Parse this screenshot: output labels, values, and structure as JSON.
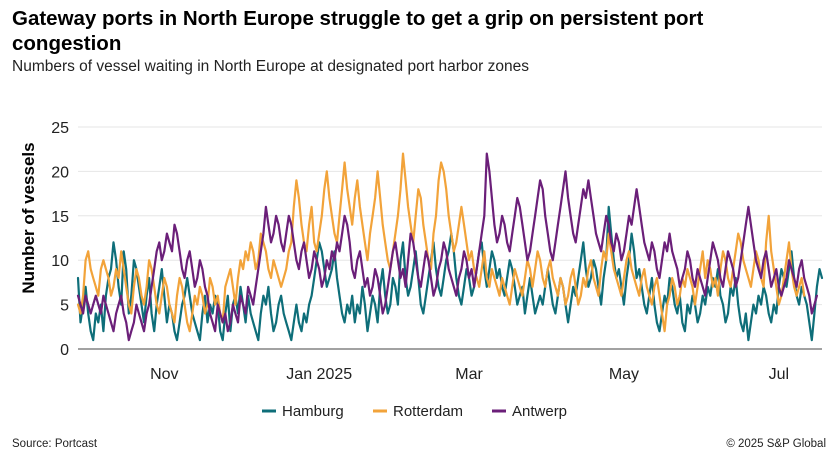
{
  "header": {
    "title": "Gateway ports in North Europe struggle to get a grip on persistent port congestion",
    "subtitle": "Numbers of vessel waiting in North Europe at designated port harbor zones"
  },
  "footer": {
    "source": "Source: Portcast",
    "copyright": "© 2025 S&P Global"
  },
  "chart_data": {
    "type": "line",
    "title": "Gateway ports in North Europe struggle to get a grip on persistent port congestion",
    "subtitle": "Numbers of vessel waiting in North Europe at designated port harbor zones",
    "xlabel": "",
    "ylabel": "Number of vessels",
    "ylim": [
      0,
      25
    ],
    "yticks": [
      0,
      5,
      10,
      15,
      20,
      25
    ],
    "x_start": "2024-10-12",
    "x_end": "2025-07-25",
    "xticks": [
      {
        "label": "Nov",
        "day": 34
      },
      {
        "label": "Jan 2025",
        "day": 95
      },
      {
        "label": "Mar",
        "day": 154
      },
      {
        "label": "May",
        "day": 215
      },
      {
        "label": "Jul",
        "day": 276
      }
    ],
    "legend_position": "bottom",
    "series": [
      {
        "name": "Hamburg",
        "color": "#0e6e79",
        "values": [
          8,
          3,
          5,
          7,
          4,
          2,
          1,
          4,
          3,
          5,
          2,
          6,
          8,
          9,
          12,
          10,
          7,
          5,
          11,
          9,
          4,
          6,
          10,
          9,
          7,
          5,
          3,
          6,
          8,
          4,
          2,
          5,
          7,
          9,
          6,
          3,
          5,
          4,
          2,
          1,
          3,
          5,
          6,
          8,
          6,
          4,
          3,
          2,
          1,
          4,
          6,
          3,
          5,
          4,
          6,
          5,
          2,
          1,
          4,
          6,
          2,
          5,
          6,
          4,
          7,
          5,
          3,
          6,
          4,
          3,
          2,
          1,
          4,
          6,
          5,
          7,
          4,
          2,
          3,
          5,
          6,
          4,
          3,
          2,
          1,
          3,
          5,
          3,
          2,
          4,
          3,
          5,
          6,
          8,
          10,
          12,
          11,
          9,
          7,
          8,
          9,
          11,
          8,
          6,
          4,
          3,
          5,
          4,
          6,
          3,
          5,
          4,
          7,
          5,
          2,
          4,
          6,
          5,
          3,
          7,
          9,
          6,
          4,
          5,
          8,
          7,
          5,
          10,
          12,
          8,
          6,
          7,
          9,
          11,
          8,
          5,
          4,
          6,
          8,
          10,
          12,
          9,
          7,
          6,
          8,
          10,
          11,
          13,
          11,
          8,
          6,
          5,
          7,
          9,
          8,
          6,
          7,
          9,
          11,
          12,
          9,
          7,
          9,
          11,
          10,
          8,
          9,
          7,
          6,
          8,
          10,
          9,
          7,
          5,
          6,
          7,
          4,
          6,
          8,
          6,
          4,
          5,
          6,
          5,
          7,
          9,
          7,
          5,
          4,
          6,
          8,
          7,
          5,
          3,
          5,
          7,
          6,
          8,
          10,
          12,
          9,
          7,
          8,
          10,
          9,
          7,
          5,
          8,
          10,
          16,
          13,
          10,
          8,
          9,
          7,
          5,
          8,
          10,
          13,
          11,
          8,
          9,
          7,
          5,
          4,
          6,
          8,
          5,
          3,
          2,
          4,
          6,
          5,
          8,
          7,
          5,
          4,
          6,
          3,
          2,
          5,
          4,
          6,
          5,
          3,
          4,
          6,
          5,
          7,
          6,
          8,
          7,
          9,
          6,
          5,
          3,
          4,
          7,
          6,
          8,
          5,
          3,
          2,
          4,
          1,
          3,
          5,
          4,
          6,
          5,
          7,
          6,
          4,
          3,
          5,
          4,
          7,
          9,
          8,
          7,
          9,
          11,
          8,
          6,
          5,
          7,
          6,
          5,
          3,
          1,
          4,
          7,
          9,
          8
        ]
      },
      {
        "name": "Rotterdam",
        "color": "#f2a33a",
        "values": [
          5,
          4,
          6,
          10,
          11,
          9,
          8,
          7,
          6,
          9,
          10,
          9,
          8,
          6,
          7,
          9,
          8,
          11,
          9,
          7,
          5,
          4,
          7,
          9,
          8,
          6,
          5,
          7,
          10,
          9,
          7,
          5,
          4,
          6,
          8,
          7,
          5,
          4,
          3,
          6,
          8,
          7,
          5,
          3,
          2,
          4,
          6,
          5,
          7,
          6,
          4,
          5,
          8,
          7,
          5,
          6,
          4,
          3,
          7,
          8,
          9,
          7,
          5,
          8,
          10,
          9,
          11,
          10,
          12,
          11,
          9,
          10,
          13,
          12,
          11,
          9,
          8,
          10,
          9,
          8,
          7,
          8,
          9,
          11,
          12,
          16,
          19,
          17,
          14,
          12,
          11,
          14,
          16,
          12,
          11,
          13,
          15,
          18,
          20,
          17,
          15,
          13,
          12,
          15,
          18,
          21,
          18,
          16,
          14,
          17,
          19,
          16,
          14,
          12,
          10,
          13,
          15,
          17,
          20,
          17,
          14,
          12,
          10,
          9,
          11,
          13,
          15,
          18,
          22,
          19,
          16,
          14,
          12,
          15,
          18,
          17,
          14,
          12,
          10,
          9,
          13,
          15,
          19,
          21,
          20,
          18,
          15,
          13,
          11,
          12,
          14,
          16,
          14,
          12,
          10,
          11,
          9,
          8,
          7,
          9,
          11,
          8,
          7,
          9,
          8,
          7,
          6,
          8,
          7,
          6,
          5,
          7,
          9,
          8,
          7,
          6,
          8,
          10,
          9,
          7,
          9,
          11,
          10,
          8,
          7,
          9,
          10,
          8,
          7,
          6,
          8,
          7,
          5,
          6,
          8,
          9,
          7,
          5,
          6,
          8,
          7,
          9,
          10,
          8,
          7,
          6,
          9,
          11,
          10,
          13,
          11,
          9,
          8,
          7,
          6,
          8,
          10,
          11,
          9,
          8,
          7,
          6,
          8,
          9,
          7,
          6,
          5,
          7,
          8,
          6,
          4,
          2,
          5,
          6,
          8,
          7,
          5,
          6,
          8,
          7,
          9,
          8,
          7,
          5,
          7,
          9,
          11,
          8,
          10,
          9,
          7,
          8,
          6,
          9,
          11,
          10,
          8,
          7,
          9,
          11,
          13,
          12,
          10,
          9,
          8,
          7,
          9,
          11,
          10,
          8,
          7,
          12,
          15,
          11,
          9,
          7,
          5,
          6,
          8,
          10,
          12,
          9,
          7,
          6,
          7,
          8,
          6
        ]
      },
      {
        "name": "Antwerp",
        "color": "#6b1f79",
        "values": [
          6,
          5,
          4,
          6,
          5,
          4,
          5,
          6,
          5,
          4,
          6,
          5,
          4,
          3,
          2,
          4,
          5,
          6,
          4,
          3,
          1,
          2,
          3,
          5,
          4,
          3,
          2,
          4,
          5,
          7,
          9,
          11,
          12,
          10,
          11,
          13,
          12,
          11,
          14,
          13,
          11,
          9,
          8,
          10,
          11,
          9,
          7,
          8,
          10,
          9,
          7,
          6,
          4,
          3,
          2,
          5,
          4,
          3,
          4,
          2,
          3,
          5,
          4,
          3,
          6,
          5,
          4,
          7,
          6,
          5,
          7,
          9,
          11,
          13,
          16,
          14,
          12,
          13,
          15,
          14,
          12,
          11,
          13,
          15,
          14,
          12,
          10,
          9,
          11,
          12,
          10,
          8,
          9,
          11,
          10,
          9,
          7,
          8,
          10,
          9,
          11,
          10,
          12,
          11,
          13,
          15,
          14,
          12,
          9,
          8,
          10,
          11,
          9,
          7,
          8,
          6,
          7,
          9,
          8,
          6,
          4,
          5,
          7,
          9,
          11,
          12,
          10,
          8,
          9,
          7,
          10,
          13,
          12,
          10,
          8,
          7,
          9,
          11,
          10,
          8,
          6,
          7,
          9,
          10,
          12,
          11,
          9,
          8,
          7,
          6,
          8,
          9,
          11,
          10,
          8,
          9,
          7,
          9,
          11,
          13,
          15,
          22,
          20,
          17,
          14,
          12,
          13,
          15,
          14,
          12,
          11,
          13,
          15,
          17,
          16,
          14,
          12,
          10,
          11,
          13,
          15,
          17,
          19,
          18,
          15,
          13,
          11,
          10,
          12,
          14,
          16,
          18,
          20,
          17,
          15,
          13,
          12,
          14,
          16,
          18,
          17,
          19,
          17,
          15,
          13,
          12,
          11,
          13,
          15,
          14,
          12,
          11,
          13,
          12,
          10,
          11,
          13,
          15,
          14,
          16,
          18,
          16,
          14,
          12,
          11,
          10,
          12,
          11,
          9,
          8,
          10,
          12,
          11,
          13,
          11,
          10,
          9,
          7,
          8,
          9,
          11,
          10,
          8,
          7,
          9,
          8,
          7,
          6,
          8,
          10,
          12,
          11,
          10,
          8,
          7,
          9,
          11,
          10,
          9,
          7,
          8,
          10,
          12,
          14,
          16,
          14,
          12,
          10,
          9,
          8,
          10,
          11,
          9,
          7,
          8,
          9,
          7,
          6,
          7,
          8,
          10,
          9,
          8,
          7,
          9,
          10,
          8,
          7,
          6,
          4,
          5,
          6
        ]
      }
    ]
  }
}
